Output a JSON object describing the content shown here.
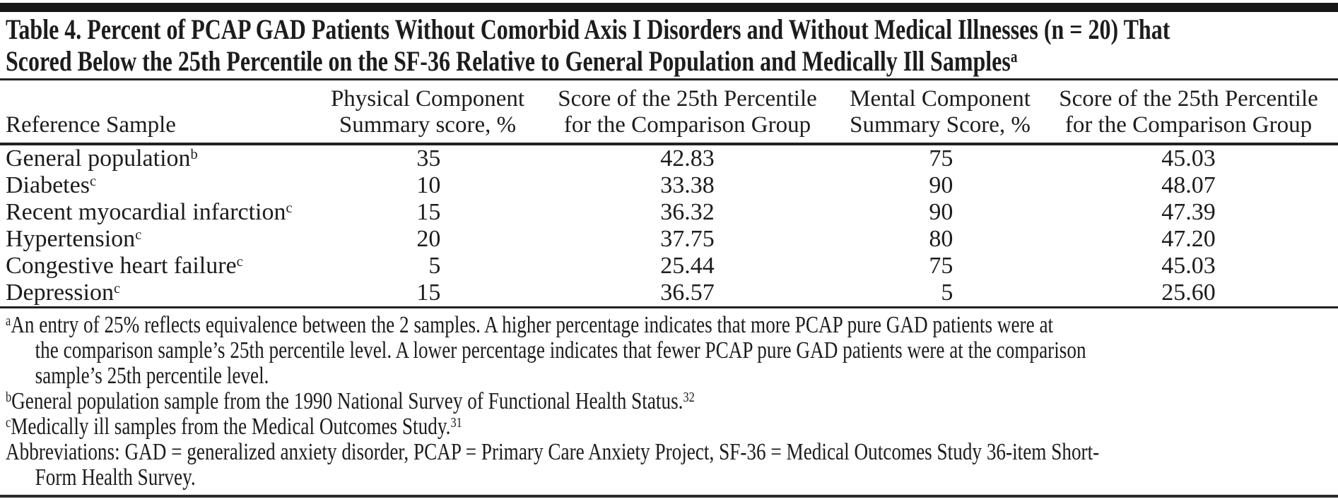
{
  "title": {
    "text": "Table 4. Percent of PCAP GAD Patients Without Comorbid Axis I Disorders and Without Medical Illnesses (n = 20) That\nScored Below the 25th Percentile on the SF-36 Relative to General Population and Medically Ill Samples",
    "sup": "a"
  },
  "table": {
    "columns": [
      {
        "label": "Reference Sample"
      },
      {
        "label": "Physical Component\nSummary score, %"
      },
      {
        "label": "Score of the 25th Percentile\nfor the Comparison Group"
      },
      {
        "label": "Mental Component\nSummary Score, %"
      },
      {
        "label": "Score of the 25th Percentile\nfor the Comparison Group"
      }
    ],
    "rows": [
      {
        "label": "General population",
        "sup": "b",
        "pcs_pct": "35",
        "pcs_25th": "42.83",
        "mcs_pct": "75",
        "mcs_25th": "45.03"
      },
      {
        "label": "Diabetes",
        "sup": "c",
        "pcs_pct": "10",
        "pcs_25th": "33.38",
        "mcs_pct": "90",
        "mcs_25th": "48.07"
      },
      {
        "label": "Recent myocardial infarction",
        "sup": "c",
        "pcs_pct": "15",
        "pcs_25th": "36.32",
        "mcs_pct": "90",
        "mcs_25th": "47.39"
      },
      {
        "label": "Hypertension",
        "sup": "c",
        "pcs_pct": "20",
        "pcs_25th": "37.75",
        "mcs_pct": "80",
        "mcs_25th": "47.20"
      },
      {
        "label": "Congestive heart failure",
        "sup": "c",
        "pcs_pct": "5",
        "pcs_25th": "25.44",
        "mcs_pct": "75",
        "mcs_25th": "45.03"
      },
      {
        "label": "Depression",
        "sup": "c",
        "pcs_pct": "15",
        "pcs_25th": "36.57",
        "mcs_pct": "5",
        "mcs_25th": "25.60"
      }
    ]
  },
  "footnotes": [
    {
      "marker": "a",
      "text": "An entry of 25% reflects equivalence between the 2 samples. A higher percentage indicates that more PCAP pure GAD patients were at\nthe comparison sample’s 25th percentile level. A lower percentage indicates that fewer PCAP pure GAD patients were at the comparison\nsample’s 25th percentile level.",
      "ref": ""
    },
    {
      "marker": "b",
      "text": "General population sample from the 1990 National Survey of Functional Health Status.",
      "ref": "32"
    },
    {
      "marker": "c",
      "text": "Medically ill samples from the Medical Outcomes Study.",
      "ref": "31"
    },
    {
      "marker": "",
      "text": "Abbreviations: GAD = generalized anxiety disorder, PCAP = Primary Care Anxiety Project, SF-36 = Medical Outcomes Study 36-item Short-\nForm Health Survey.",
      "ref": ""
    }
  ],
  "colors": {
    "text": "#1c1c1c",
    "rule": "#222222",
    "top_bar": "#161616",
    "background": "#ffffff"
  }
}
